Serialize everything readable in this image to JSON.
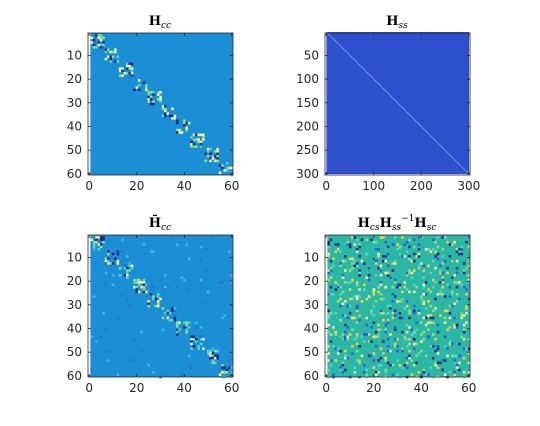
{
  "figure": {
    "layout": "2x2",
    "colormap": "parula",
    "colors": {
      "background": "#ffffff",
      "axes": "#262626",
      "cc_base": "#1a8fd6",
      "ss_base": "#2e50cc",
      "schur_base": "#2ab8a4",
      "diag_dark": "#1c2a88",
      "diag_light": "#f5f0a0",
      "diag_green": "#8fe079",
      "diag_cyan": "#55d4c8"
    }
  },
  "chart_data": [
    {
      "id": "hcc",
      "type": "heatmap",
      "title_main": "H",
      "title_sub": "cc",
      "pattern": "block-diagonal",
      "matrix_size": [
        60,
        60
      ],
      "xlim": [
        -0.5,
        60.5
      ],
      "ylim": [
        0.5,
        60.5
      ],
      "y_reversed": true,
      "xticks": [
        0,
        20,
        40,
        60
      ],
      "yticks": [
        10,
        20,
        30,
        40,
        50,
        60
      ],
      "diagonal_blocks": [
        1,
        7,
        13,
        19,
        25,
        31,
        37,
        43,
        49,
        55
      ]
    },
    {
      "id": "hss",
      "type": "heatmap",
      "title_main": "H",
      "title_sub": "ss",
      "pattern": "diagonal",
      "matrix_size": [
        300,
        300
      ],
      "xlim": [
        -2.5,
        302.5
      ],
      "ylim": [
        2.5,
        302.5
      ],
      "y_reversed": true,
      "xticks": [
        0,
        100,
        200,
        300
      ],
      "yticks": [
        50,
        100,
        150,
        200,
        250,
        300
      ]
    },
    {
      "id": "hcc_bar",
      "type": "heatmap",
      "title_main": "H̄",
      "title_sub": "cc",
      "pattern": "block-diagonal-with-offdiagonal",
      "matrix_size": [
        60,
        60
      ],
      "xlim": [
        -0.5,
        60.5
      ],
      "ylim": [
        0.5,
        60.5
      ],
      "y_reversed": true,
      "xticks": [
        0,
        20,
        40,
        60
      ],
      "yticks": [
        10,
        20,
        30,
        40,
        50,
        60
      ],
      "diagonal_blocks": [
        1,
        7,
        13,
        19,
        25,
        31,
        37,
        43,
        49,
        55
      ]
    },
    {
      "id": "schur",
      "type": "heatmap",
      "title_parts": [
        {
          "t": "H",
          "sub": "cs"
        },
        {
          "t": "H",
          "sub": "ss",
          "sup": "−1"
        },
        {
          "t": "H",
          "sub": "sc"
        }
      ],
      "pattern": "dense-blocks",
      "matrix_size": [
        60,
        60
      ],
      "xlim": [
        -0.5,
        60.5
      ],
      "ylim": [
        0.5,
        60.5
      ],
      "y_reversed": true,
      "xticks": [
        0,
        20,
        40,
        60
      ],
      "yticks": [
        10,
        20,
        30,
        40,
        50,
        60
      ]
    }
  ]
}
